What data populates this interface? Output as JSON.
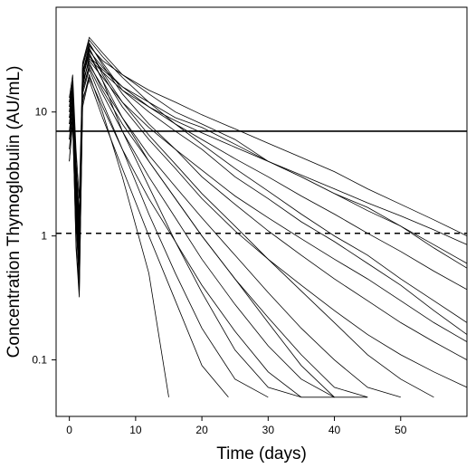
{
  "chart_data": {
    "type": "line",
    "title": "",
    "xlabel": "Time (days)",
    "ylabel": "Concentration Thymoglobulin (AU/mL)",
    "xlim": [
      -2,
      60
    ],
    "ylim": [
      0.035,
      70
    ],
    "y_scale": "log",
    "x_ticks": [
      0,
      10,
      20,
      30,
      40,
      50
    ],
    "x_tick_labels": [
      "0",
      "10",
      "20",
      "30",
      "40",
      "50"
    ],
    "y_ticks": [
      0.1,
      1,
      10
    ],
    "y_tick_labels": [
      "0.1",
      "1",
      "10"
    ],
    "grid": false,
    "legend": "none",
    "line_color": "#000000",
    "reference_lines": [
      {
        "y": 7,
        "style": "solid"
      },
      {
        "y": 1.05,
        "style": "dashed"
      }
    ],
    "series": [
      {
        "x": [
          0,
          0.5,
          1,
          1.5,
          2,
          3,
          5,
          8,
          12,
          16,
          20,
          25,
          30,
          35,
          40
        ],
        "y": [
          8,
          14,
          2,
          0.6,
          18,
          25,
          15,
          8,
          4,
          2,
          1,
          0.45,
          0.2,
          0.09,
          0.05
        ]
      },
      {
        "x": [
          0,
          0.5,
          1,
          1.5,
          2,
          3,
          5,
          8,
          12,
          16,
          20,
          25,
          30,
          35,
          40,
          45,
          50,
          55,
          60
        ],
        "y": [
          6,
          12,
          1.5,
          0.4,
          20,
          35,
          25,
          15,
          10,
          7,
          5,
          3,
          2,
          1.3,
          0.9,
          0.6,
          0.4,
          0.25,
          0.16
        ]
      },
      {
        "x": [
          0,
          0.5,
          1,
          1.5,
          2,
          3,
          5,
          8,
          12,
          16,
          20,
          25,
          30,
          35,
          40,
          45,
          50,
          55,
          60
        ],
        "y": [
          10,
          15,
          3,
          1,
          25,
          40,
          30,
          20,
          14,
          10,
          8,
          6,
          4,
          3,
          2.2,
          1.6,
          1.2,
          0.8,
          0.55
        ]
      },
      {
        "x": [
          0,
          0.5,
          1,
          1.5,
          2,
          3,
          5,
          8,
          12,
          15
        ],
        "y": [
          4,
          9,
          0.8,
          0.32,
          12,
          20,
          10,
          3,
          0.5,
          0.05
        ]
      },
      {
        "x": [
          0,
          0.5,
          1,
          1.5,
          2,
          3,
          5,
          8,
          12,
          16,
          20,
          25,
          30,
          35
        ],
        "y": [
          12,
          18,
          4,
          1.5,
          22,
          30,
          18,
          7,
          2.5,
          0.9,
          0.35,
          0.12,
          0.06,
          0.05
        ]
      },
      {
        "x": [
          0,
          0.5,
          1,
          1.5,
          2,
          3,
          5,
          8,
          12,
          16,
          20,
          25,
          30,
          35,
          40,
          45,
          50,
          55,
          60
        ],
        "y": [
          9,
          13,
          2.5,
          0.8,
          16,
          28,
          22,
          16,
          12,
          9,
          7.5,
          5.5,
          4,
          3,
          2.2,
          1.7,
          1.2,
          0.85,
          0.6
        ]
      },
      {
        "x": [
          0,
          0.5,
          1,
          1.5,
          2,
          3,
          5,
          8,
          12,
          16,
          20,
          25,
          30
        ],
        "y": [
          7,
          11,
          1.8,
          0.5,
          14,
          22,
          12,
          5,
          1.5,
          0.5,
          0.18,
          0.07,
          0.05
        ]
      },
      {
        "x": [
          0,
          0.5,
          1,
          1.5,
          2,
          3,
          5,
          8,
          12,
          16,
          20,
          25,
          30,
          35,
          40,
          45,
          50,
          55,
          60
        ],
        "y": [
          11,
          16,
          3.5,
          1.2,
          18,
          33,
          20,
          11,
          6,
          3.5,
          2,
          1.1,
          0.65,
          0.4,
          0.25,
          0.16,
          0.11,
          0.08,
          0.06
        ]
      },
      {
        "x": [
          0,
          0.5,
          1,
          1.5,
          2,
          3,
          5,
          8,
          12,
          16,
          20,
          25,
          30,
          35,
          40,
          45
        ],
        "y": [
          5,
          10,
          1.2,
          0.45,
          15,
          24,
          16,
          9,
          4,
          2,
          1,
          0.45,
          0.22,
          0.11,
          0.06,
          0.05
        ]
      },
      {
        "x": [
          0,
          0.5,
          1,
          1.5,
          2,
          3,
          5,
          8,
          12,
          16,
          20,
          25,
          30,
          35,
          40,
          45,
          50,
          55,
          60
        ],
        "y": [
          13,
          20,
          5,
          2,
          24,
          38,
          28,
          19,
          12,
          8,
          5.5,
          3.5,
          2.3,
          1.5,
          1,
          0.7,
          0.45,
          0.3,
          0.2
        ]
      },
      {
        "x": [
          0,
          0.5,
          1,
          1.5,
          2,
          3,
          5,
          8,
          12,
          16,
          20,
          24
        ],
        "y": [
          6,
          10,
          1.4,
          0.5,
          13,
          18,
          9,
          3.5,
          1,
          0.3,
          0.09,
          0.05
        ]
      },
      {
        "x": [
          0,
          0.5,
          1,
          1.5,
          2,
          3,
          5,
          8,
          12,
          16,
          20,
          25,
          30,
          35,
          40,
          45,
          50,
          55,
          60
        ],
        "y": [
          8,
          12,
          2.2,
          0.7,
          17,
          26,
          19,
          12,
          7.5,
          5,
          3.4,
          2.1,
          1.4,
          0.95,
          0.65,
          0.45,
          0.3,
          0.2,
          0.14
        ]
      },
      {
        "x": [
          0,
          0.5,
          1,
          1.5,
          2,
          3,
          5,
          8,
          12,
          16,
          20,
          25,
          30,
          35,
          40,
          45,
          50
        ],
        "y": [
          9,
          14,
          2.8,
          0.9,
          19,
          29,
          18,
          9,
          4.5,
          2.5,
          1.4,
          0.7,
          0.35,
          0.18,
          0.1,
          0.06,
          0.05
        ]
      },
      {
        "x": [
          0,
          0.5,
          1,
          1.5,
          2,
          3,
          5,
          8,
          12,
          16,
          20,
          25,
          30,
          35,
          40,
          45,
          50,
          55,
          60
        ],
        "y": [
          10,
          15,
          3,
          1,
          21,
          34,
          26,
          20,
          15,
          12,
          9.5,
          7.3,
          5.6,
          4.3,
          3.3,
          2.4,
          1.8,
          1.35,
          1
        ]
      },
      {
        "x": [
          0,
          0.5,
          1,
          1.5,
          2,
          3,
          5,
          8,
          12,
          16,
          20,
          25,
          30,
          35,
          40
        ],
        "y": [
          4,
          8,
          0.9,
          0.35,
          11,
          19,
          11,
          5,
          2,
          0.9,
          0.4,
          0.17,
          0.08,
          0.05,
          0.05
        ]
      },
      {
        "x": [
          0,
          0.5,
          1,
          1.5,
          2,
          3,
          5,
          8,
          12,
          16,
          20,
          25,
          30,
          35,
          40,
          45,
          50,
          55,
          60
        ],
        "y": [
          12,
          17,
          4,
          1.4,
          23,
          36,
          24,
          14,
          8,
          5,
          3,
          1.8,
          1.1,
          0.7,
          0.45,
          0.3,
          0.2,
          0.14,
          0.1
        ]
      },
      {
        "x": [
          0,
          0.5,
          1,
          1.5,
          2,
          3,
          5,
          8,
          12,
          16,
          20,
          25,
          30,
          35,
          40,
          45
        ],
        "y": [
          7,
          12,
          1.7,
          0.55,
          15,
          23,
          14,
          7,
          3,
          1.4,
          0.65,
          0.28,
          0.13,
          0.07,
          0.05,
          0.05
        ]
      },
      {
        "x": [
          0,
          0.5,
          1,
          1.5,
          2,
          3,
          5,
          8,
          12,
          16,
          20,
          25,
          30,
          35,
          40,
          45,
          50,
          55,
          60
        ],
        "y": [
          9,
          13,
          2.4,
          0.8,
          18,
          31,
          23,
          16,
          11,
          8,
          6,
          4.2,
          3,
          2.1,
          1.5,
          1.05,
          0.75,
          0.52,
          0.37
        ]
      },
      {
        "x": [
          0,
          0.5,
          1,
          1.5,
          2,
          3,
          5,
          8,
          12,
          16,
          20,
          25,
          30,
          35,
          40,
          45,
          50,
          55
        ],
        "y": [
          11,
          16,
          3.2,
          1.1,
          20,
          32,
          21,
          12,
          6.5,
          3.8,
          2.2,
          1.2,
          0.65,
          0.36,
          0.2,
          0.11,
          0.07,
          0.05
        ]
      },
      {
        "x": [
          0,
          0.5,
          1,
          1.5,
          2,
          3,
          5,
          8,
          12,
          16,
          20,
          25,
          30,
          35,
          40,
          45,
          50,
          55,
          60
        ],
        "y": [
          8,
          12,
          2,
          0.65,
          16,
          27,
          21,
          15,
          11,
          8.5,
          6.8,
          5.2,
          4,
          3.1,
          2.4,
          1.85,
          1.45,
          1.12,
          0.85
        ]
      }
    ]
  }
}
